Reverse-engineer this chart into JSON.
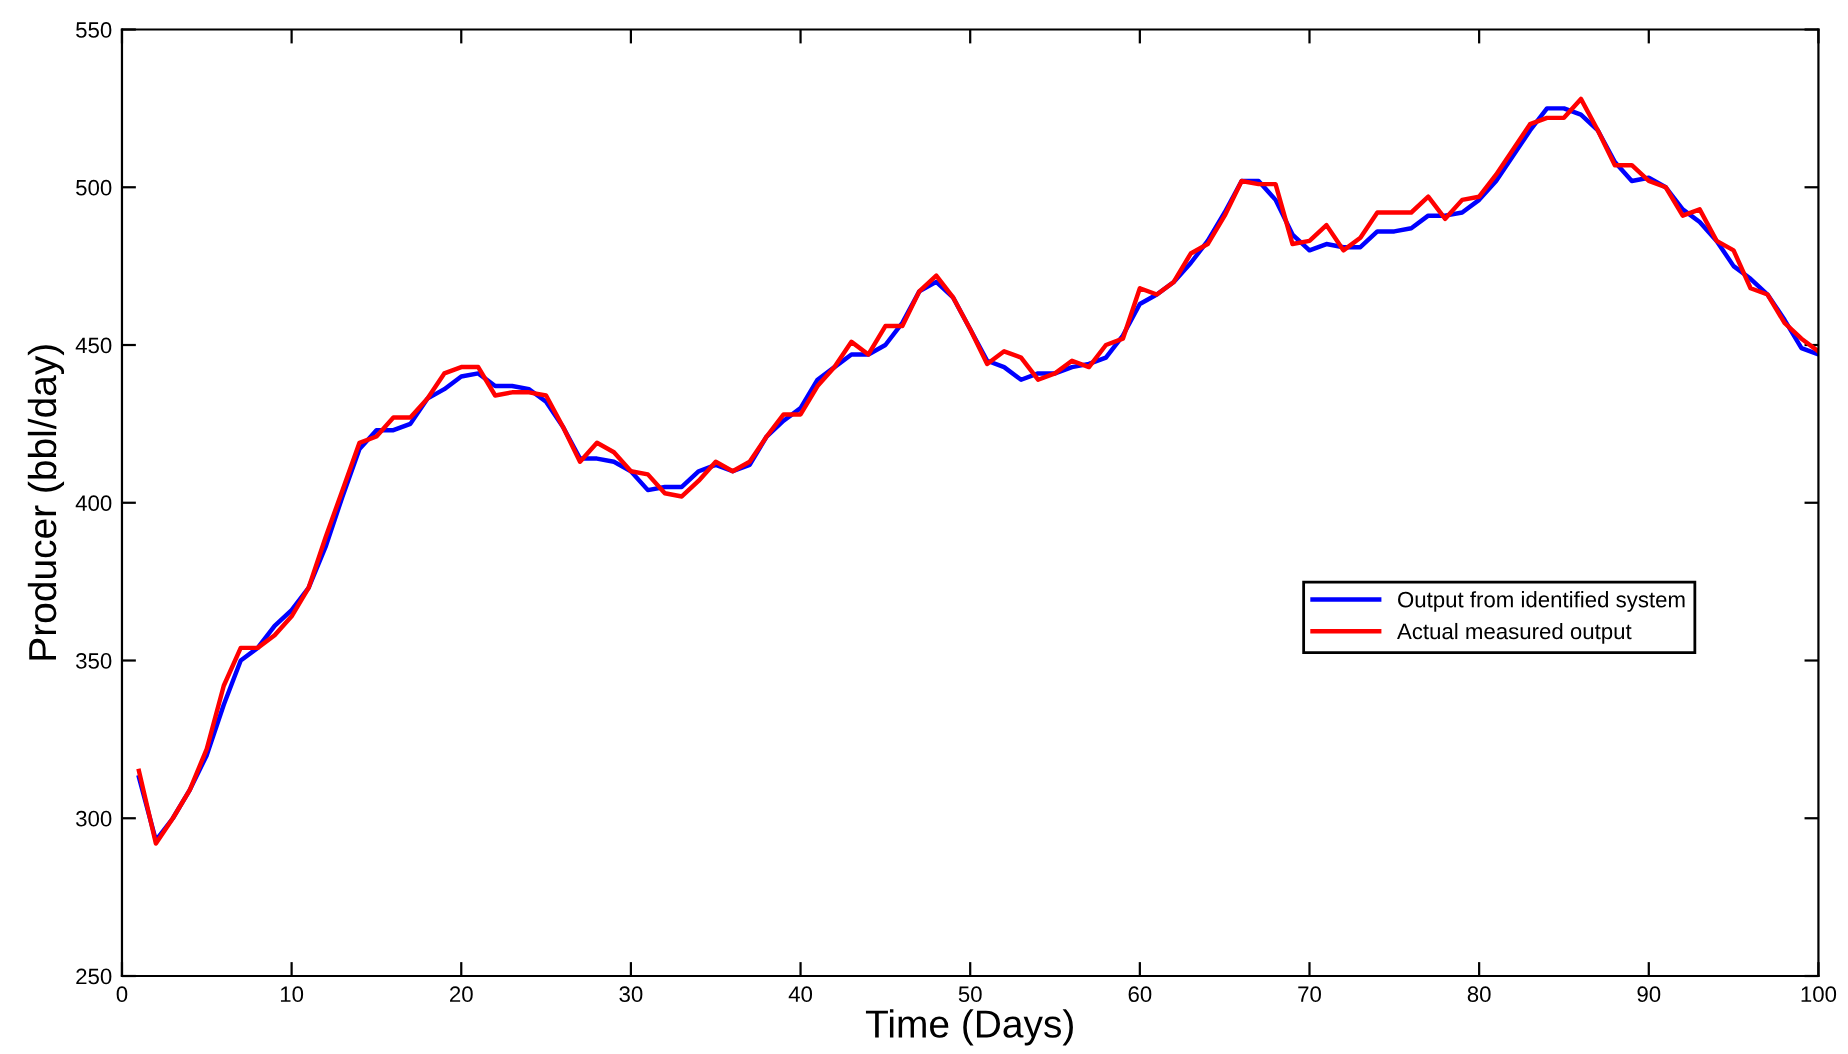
{
  "chart_data": {
    "type": "line",
    "xlabel": "Time (Days)",
    "ylabel": "Producer (bbl/day)",
    "xlim": [
      0,
      100
    ],
    "ylim": [
      250,
      550
    ],
    "xticks": [
      0,
      10,
      20,
      30,
      40,
      50,
      60,
      70,
      80,
      90,
      100
    ],
    "yticks": [
      250,
      300,
      350,
      400,
      450,
      500,
      550
    ],
    "grid": false,
    "legend": "right",
    "marker": "none",
    "line_style": "solid",
    "x": [
      1,
      2,
      3,
      4,
      5,
      6,
      7,
      8,
      9,
      10,
      11,
      12,
      13,
      14,
      15,
      16,
      17,
      18,
      19,
      20,
      21,
      22,
      23,
      24,
      25,
      26,
      27,
      28,
      29,
      30,
      31,
      32,
      33,
      34,
      35,
      36,
      37,
      38,
      39,
      40,
      41,
      42,
      43,
      44,
      45,
      46,
      47,
      48,
      49,
      50,
      51,
      52,
      53,
      54,
      55,
      56,
      57,
      58,
      59,
      60,
      61,
      62,
      63,
      64,
      65,
      66,
      67,
      68,
      69,
      70,
      71,
      72,
      73,
      74,
      75,
      76,
      77,
      78,
      79,
      80,
      81,
      82,
      83,
      84,
      85,
      86,
      87,
      88,
      89,
      90,
      91,
      92,
      93,
      94,
      95,
      96,
      97,
      98,
      99,
      100
    ],
    "series": [
      {
        "name": "Output from identified system",
        "color": "#0000ff",
        "values": [
          313,
          293,
          300,
          309,
          320,
          336,
          350,
          354,
          361,
          366,
          373,
          386,
          402,
          417,
          423,
          423,
          425,
          433,
          436,
          440,
          441,
          437,
          437,
          436,
          432,
          424,
          414,
          414,
          413,
          410,
          404,
          405,
          405,
          410,
          412,
          410,
          412,
          421,
          426,
          430,
          439,
          443,
          447,
          447,
          450,
          457,
          467,
          470,
          465,
          455,
          445,
          443,
          439,
          441,
          441,
          443,
          444,
          446,
          453,
          463,
          466,
          470,
          476,
          483,
          492,
          502,
          502,
          496,
          485,
          480,
          482,
          481,
          481,
          486,
          486,
          487,
          491,
          491,
          492,
          496,
          502,
          510,
          518,
          525,
          525,
          523,
          518,
          508,
          502,
          503,
          500,
          493,
          489,
          483,
          475,
          471,
          466,
          458,
          449,
          447
        ]
      },
      {
        "name": "Actual measured output",
        "color": "#ff0000",
        "values": [
          315,
          292,
          300,
          309,
          322,
          342,
          354,
          354,
          358,
          364,
          373,
          389,
          404,
          419,
          421,
          427,
          427,
          433,
          441,
          443,
          443,
          434,
          435,
          435,
          434,
          424,
          413,
          419,
          416,
          410,
          409,
          403,
          402,
          407,
          413,
          410,
          413,
          421,
          428,
          428,
          437,
          443,
          451,
          447,
          456,
          456,
          467,
          472,
          465,
          455,
          444,
          448,
          446,
          439,
          441,
          445,
          443,
          450,
          452,
          468,
          466,
          470,
          479,
          482,
          491,
          502,
          501,
          501,
          482,
          483,
          488,
          480,
          484,
          492,
          492,
          492,
          497,
          490,
          496,
          497,
          504,
          512,
          520,
          522,
          522,
          528,
          518,
          507,
          507,
          502,
          500,
          491,
          493,
          483,
          480,
          468,
          466,
          457,
          452,
          448
        ]
      }
    ]
  }
}
